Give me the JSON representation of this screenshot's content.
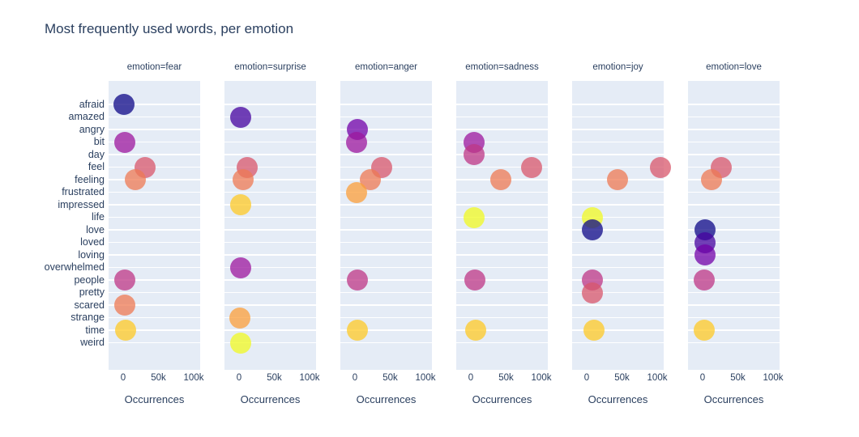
{
  "chart_data": {
    "type": "scatter",
    "title": "Most frequently used words, per emotion",
    "xlabel": "Occurrences",
    "ylabel": "",
    "x_tick_labels": [
      "0",
      "50k",
      "100k"
    ],
    "x_tick_values": [
      0,
      50000,
      100000
    ],
    "x_range": [
      -21000,
      115000
    ],
    "grid": "horizontal-only",
    "legend_position": "none",
    "categories": [
      "afraid",
      "amazed",
      "angry",
      "bit",
      "day",
      "feel",
      "feeling",
      "frustrated",
      "impressed",
      "life",
      "love",
      "loved",
      "loving",
      "overwhelmed",
      "people",
      "pretty",
      "scared",
      "strange",
      "time",
      "weird"
    ],
    "word_colors": {
      "afraid": "#0d0887",
      "amazed": "#46039f",
      "angry": "#7201a8",
      "bit": "#9c179e",
      "day": "#bd3786",
      "feel": "#d8576b",
      "feeling": "#ed7953",
      "frustrated": "#fb9f3a",
      "impressed": "#fdca26",
      "life": "#f0f921",
      "love": "#0d0887",
      "loved": "#46039f",
      "loving": "#7201a8",
      "overwhelmed": "#9c179e",
      "people": "#bd3786",
      "pretty": "#d8576b",
      "scared": "#ed7953",
      "strange": "#fb9f3a",
      "time": "#fdca26",
      "weird": "#f0f921"
    },
    "facets": [
      {
        "label": "emotion=fear",
        "points": [
          {
            "word": "afraid",
            "occurrences": 1500
          },
          {
            "word": "bit",
            "occurrences": 2000
          },
          {
            "word": "feel",
            "occurrences": 31000
          },
          {
            "word": "feeling",
            "occurrences": 17500
          },
          {
            "word": "people",
            "occurrences": 2000
          },
          {
            "word": "scared",
            "occurrences": 2500
          },
          {
            "word": "time",
            "occurrences": 3700
          }
        ]
      },
      {
        "label": "emotion=surprise",
        "points": [
          {
            "word": "amazed",
            "occurrences": 2000
          },
          {
            "word": "feel",
            "occurrences": 11500
          },
          {
            "word": "feeling",
            "occurrences": 5500
          },
          {
            "word": "impressed",
            "occurrences": 2000
          },
          {
            "word": "overwhelmed",
            "occurrences": 2200
          },
          {
            "word": "strange",
            "occurrences": 1500
          },
          {
            "word": "weird",
            "occurrences": 2000
          }
        ]
      },
      {
        "label": "emotion=anger",
        "points": [
          {
            "word": "angry",
            "occurrences": 3000
          },
          {
            "word": "bit",
            "occurrences": 2800
          },
          {
            "word": "feel",
            "occurrences": 38500
          },
          {
            "word": "feeling",
            "occurrences": 21500
          },
          {
            "word": "frustrated",
            "occurrences": 2500
          },
          {
            "word": "people",
            "occurrences": 3000
          },
          {
            "word": "time",
            "occurrences": 3500
          }
        ]
      },
      {
        "label": "emotion=sadness",
        "points": [
          {
            "word": "bit",
            "occurrences": 5000
          },
          {
            "word": "day",
            "occurrences": 5000
          },
          {
            "word": "feel",
            "occurrences": 86000
          },
          {
            "word": "feeling",
            "occurrences": 42500
          },
          {
            "word": "life",
            "occurrences": 5000
          },
          {
            "word": "people",
            "occurrences": 5800
          },
          {
            "word": "time",
            "occurrences": 6500
          }
        ]
      },
      {
        "label": "emotion=joy",
        "points": [
          {
            "word": "feel",
            "occurrences": 105000
          },
          {
            "word": "feeling",
            "occurrences": 43500
          },
          {
            "word": "life",
            "occurrences": 8000
          },
          {
            "word": "love",
            "occurrences": 8000
          },
          {
            "word": "people",
            "occurrences": 8000
          },
          {
            "word": "pretty",
            "occurrences": 7500
          },
          {
            "word": "time",
            "occurrences": 10000
          }
        ]
      },
      {
        "label": "emotion=love",
        "points": [
          {
            "word": "feel",
            "occurrences": 27000
          },
          {
            "word": "feeling",
            "occurrences": 12800
          },
          {
            "word": "love",
            "occurrences": 3000
          },
          {
            "word": "loved",
            "occurrences": 3000
          },
          {
            "word": "loving",
            "occurrences": 3000
          },
          {
            "word": "people",
            "occurrences": 2000
          },
          {
            "word": "time",
            "occurrences": 2500
          }
        ]
      }
    ],
    "style": {
      "panel_background": "#e5ecf6",
      "gridline_color": "#ffffff",
      "text_color": "#2a3f5f",
      "marker_opacity": 0.75,
      "marker_diameter_px": 26
    }
  }
}
